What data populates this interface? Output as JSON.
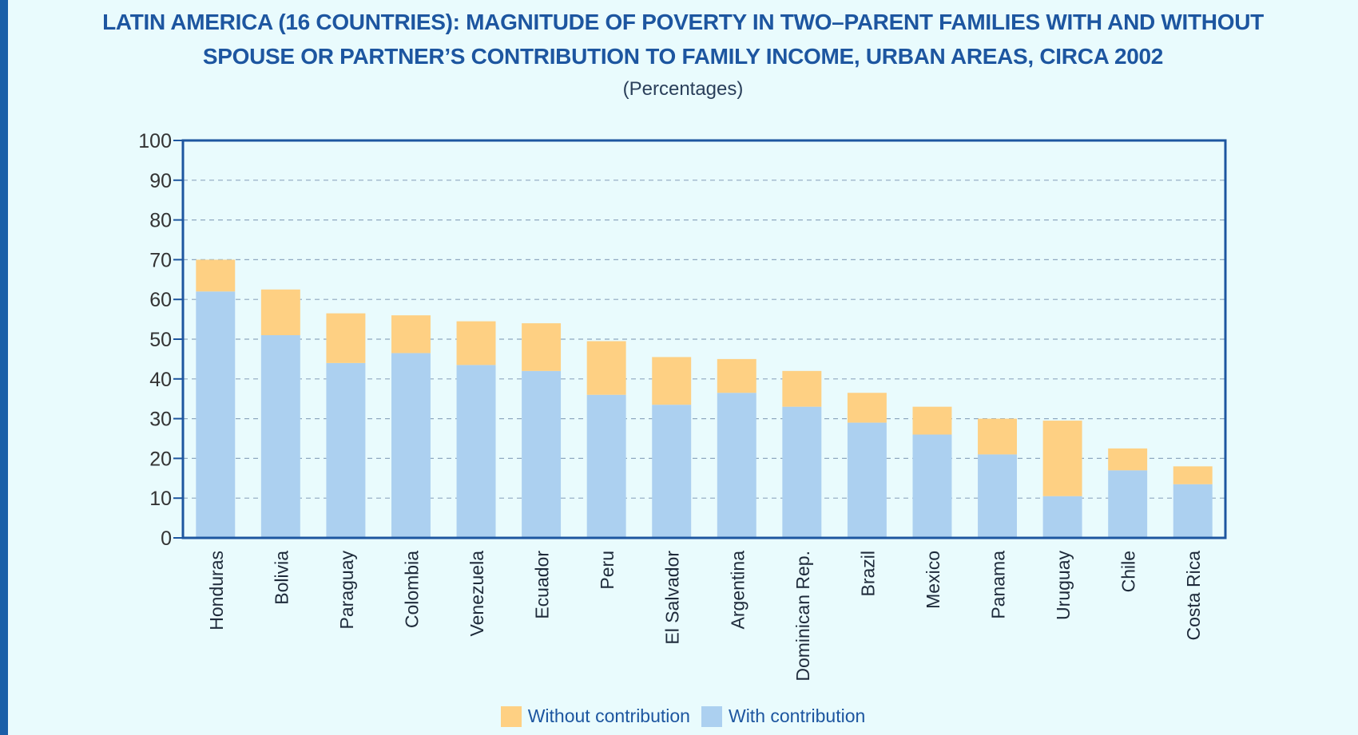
{
  "header": {
    "title_line1": "LATIN AMERICA (16 COUNTRIES): MAGNITUDE OF POVERTY IN TWO–PARENT FAMILIES WITH AND WITHOUT",
    "title_line2": "SPOUSE OR PARTNER’S CONTRIBUTION TO FAMILY INCOME, URBAN AREAS, CIRCA 2002",
    "subtitle": "(Percentages)"
  },
  "colors": {
    "with_contribution": "#acd0f0",
    "without_contribution": "#fed083",
    "axis": "#1d56a0",
    "grid": "#8fa8c0",
    "background": "#e9fbfd"
  },
  "chart_data": {
    "type": "bar",
    "stacked": true,
    "title": "LATIN AMERICA (16 COUNTRIES): MAGNITUDE OF POVERTY IN TWO–PARENT FAMILIES WITH AND WITHOUT SPOUSE OR PARTNER’S CONTRIBUTION TO FAMILY INCOME, URBAN AREAS, CIRCA 2002",
    "subtitle": "(Percentages)",
    "xlabel": "",
    "ylabel": "",
    "ylim": [
      0,
      100
    ],
    "yticks": [
      0,
      10,
      20,
      30,
      40,
      50,
      60,
      70,
      80,
      90,
      100
    ],
    "grid": true,
    "legend_position": "bottom",
    "categories": [
      "Honduras",
      "Bolivia",
      "Paraguay",
      "Colombia",
      "Venezuela",
      "Ecuador",
      "Peru",
      "El Salvador",
      "Argentina",
      "Dominican Rep.",
      "Brazil",
      "Mexico",
      "Panama",
      "Uruguay",
      "Chile",
      "Costa Rica"
    ],
    "series": [
      {
        "name": "With contribution",
        "color": "#acd0f0",
        "values": [
          62,
          51,
          44,
          46.5,
          43.5,
          42,
          36,
          33.5,
          36.5,
          33,
          29,
          26,
          21,
          10.5,
          17,
          13.5
        ]
      },
      {
        "name": "Without contribution",
        "color": "#fed083",
        "values": [
          8,
          11.5,
          12.5,
          9.5,
          11,
          12,
          13.5,
          12,
          8.5,
          9,
          7.5,
          7,
          9,
          19,
          5.5,
          4.5
        ]
      }
    ]
  },
  "legend": {
    "without_label": "Without contribution",
    "with_label": "With contribution"
  }
}
